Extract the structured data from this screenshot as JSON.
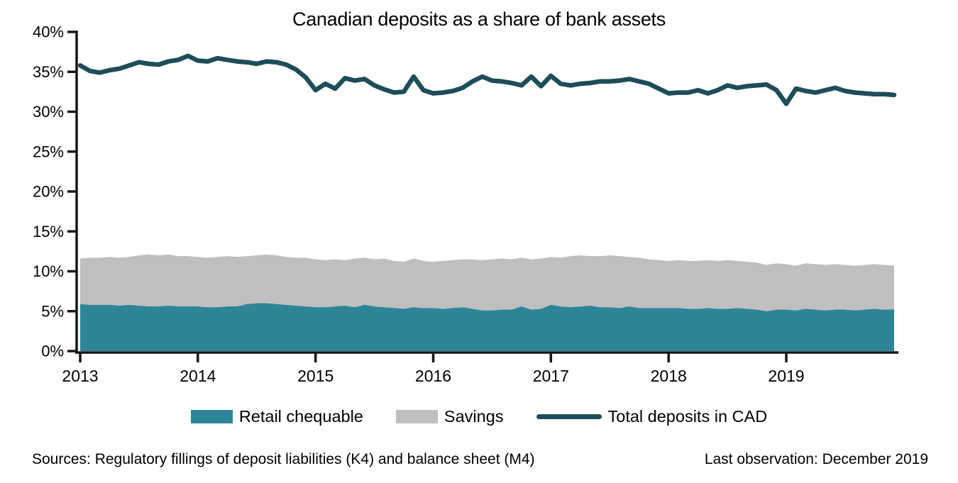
{
  "title": "Canadian deposits as a share of bank assets",
  "footer": {
    "sources": "Sources: Regulatory fillings of deposit liabilities (K4) and balance sheet (M4)",
    "last_observation": "Last observation: December 2019"
  },
  "legend": [
    {
      "label": "Retail chequable",
      "swatch": "area",
      "color": "#2e8598"
    },
    {
      "label": "Savings",
      "swatch": "area",
      "color": "#bfbfbf"
    },
    {
      "label": "Total deposits in CAD",
      "swatch": "line",
      "color": "#1d4d59"
    }
  ],
  "colors": {
    "retail_area": "#2e8598",
    "savings_area": "#bfbfbf",
    "total_line": "#1d4d59",
    "axis": "#161616",
    "background": "#ffffff"
  },
  "chart_data": {
    "type": "area",
    "subtype": "stacked-areas-with-line",
    "title": "Canadian deposits as a share of bank assets",
    "xlabel": "",
    "ylabel": "",
    "frequency": "monthly",
    "x_start": "2013-01",
    "x_end": "2019-12",
    "n_points": 84,
    "ylim": [
      0,
      40
    ],
    "y_tick_step": 5,
    "y_tick_labels": [
      "0%",
      "5%",
      "10%",
      "15%",
      "20%",
      "25%",
      "30%",
      "35%",
      "40%"
    ],
    "x_tick_labels": [
      "2013",
      "2014",
      "2015",
      "2016",
      "2017",
      "2018",
      "2019"
    ],
    "x_tick_month_indices": [
      0,
      12,
      24,
      36,
      48,
      60,
      72
    ],
    "grid": false,
    "legend_position": "bottom",
    "series": [
      {
        "name": "Retail chequable",
        "type": "area",
        "stacked": true,
        "color": "#2e8598",
        "values": [
          5.9,
          5.8,
          5.8,
          5.8,
          5.7,
          5.8,
          5.7,
          5.6,
          5.6,
          5.7,
          5.6,
          5.6,
          5.6,
          5.5,
          5.5,
          5.6,
          5.6,
          5.9,
          6.0,
          6.0,
          5.9,
          5.8,
          5.7,
          5.6,
          5.5,
          5.5,
          5.6,
          5.7,
          5.5,
          5.8,
          5.6,
          5.5,
          5.4,
          5.3,
          5.5,
          5.4,
          5.4,
          5.3,
          5.4,
          5.5,
          5.3,
          5.1,
          5.1,
          5.2,
          5.2,
          5.6,
          5.2,
          5.3,
          5.8,
          5.6,
          5.5,
          5.6,
          5.7,
          5.5,
          5.5,
          5.4,
          5.6,
          5.4,
          5.4,
          5.4,
          5.4,
          5.4,
          5.3,
          5.3,
          5.4,
          5.3,
          5.3,
          5.4,
          5.3,
          5.2,
          5.0,
          5.2,
          5.2,
          5.1,
          5.3,
          5.2,
          5.1,
          5.2,
          5.2,
          5.1,
          5.2,
          5.3,
          5.2,
          5.2
        ]
      },
      {
        "name": "Savings",
        "type": "area",
        "stacked": true,
        "color": "#bfbfbf",
        "values": [
          5.7,
          5.9,
          5.9,
          6.0,
          6.0,
          6.0,
          6.3,
          6.5,
          6.4,
          6.4,
          6.3,
          6.3,
          6.2,
          6.2,
          6.3,
          6.3,
          6.2,
          6.0,
          6.0,
          6.1,
          6.1,
          6.0,
          6.0,
          6.1,
          6.0,
          5.9,
          5.9,
          5.7,
          6.1,
          5.9,
          5.9,
          6.1,
          5.9,
          5.9,
          6.1,
          5.9,
          5.8,
          6.0,
          6.0,
          6.0,
          6.2,
          6.3,
          6.4,
          6.4,
          6.3,
          6.1,
          6.3,
          6.3,
          6.0,
          6.1,
          6.4,
          6.4,
          6.2,
          6.4,
          6.5,
          6.5,
          6.2,
          6.3,
          6.1,
          6.0,
          5.9,
          6.0,
          6.0,
          6.0,
          6.0,
          6.0,
          6.1,
          5.9,
          5.9,
          5.9,
          5.8,
          5.8,
          5.7,
          5.6,
          5.7,
          5.7,
          5.7,
          5.7,
          5.6,
          5.6,
          5.6,
          5.6,
          5.6,
          5.5
        ]
      },
      {
        "name": "Total deposits in CAD",
        "type": "line",
        "stacked": false,
        "color": "#1d4d59",
        "values": [
          35.8,
          35.1,
          34.9,
          35.2,
          35.4,
          35.8,
          36.2,
          36.0,
          35.9,
          36.3,
          36.5,
          37.0,
          36.4,
          36.3,
          36.7,
          36.5,
          36.3,
          36.2,
          36.0,
          36.3,
          36.2,
          35.9,
          35.3,
          34.3,
          32.7,
          33.5,
          32.9,
          34.2,
          33.9,
          34.1,
          33.3,
          32.8,
          32.4,
          32.5,
          34.4,
          32.7,
          32.3,
          32.4,
          32.6,
          33.0,
          33.8,
          34.4,
          33.9,
          33.8,
          33.6,
          33.3,
          34.4,
          33.2,
          34.5,
          33.5,
          33.3,
          33.5,
          33.6,
          33.8,
          33.8,
          33.9,
          34.1,
          33.8,
          33.5,
          32.9,
          32.3,
          32.4,
          32.4,
          32.7,
          32.3,
          32.7,
          33.3,
          33.0,
          33.2,
          33.3,
          33.4,
          32.7,
          31.0,
          32.9,
          32.6,
          32.4,
          32.7,
          33.0,
          32.6,
          32.4,
          32.3,
          32.2,
          32.2,
          32.1
        ]
      }
    ]
  }
}
